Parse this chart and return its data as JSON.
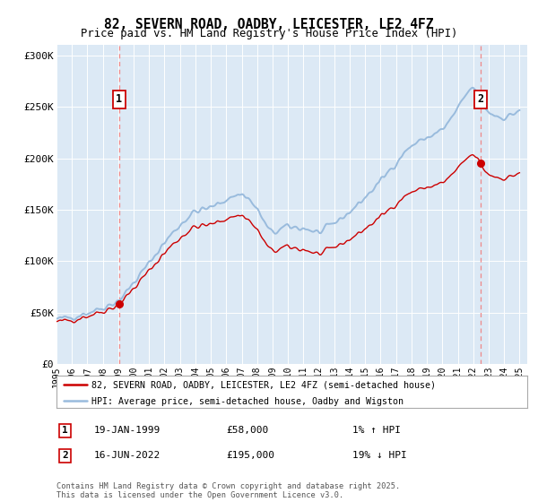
{
  "title": "82, SEVERN ROAD, OADBY, LEICESTER, LE2 4FZ",
  "subtitle": "Price paid vs. HM Land Registry's House Price Index (HPI)",
  "ylim": [
    0,
    310000
  ],
  "yticks": [
    0,
    50000,
    100000,
    150000,
    200000,
    250000,
    300000
  ],
  "ytick_labels": [
    "£0",
    "£50K",
    "£100K",
    "£150K",
    "£200K",
    "£250K",
    "£300K"
  ],
  "xlim_start": 1995.0,
  "xlim_end": 2025.5,
  "sale1_date": 1999.05,
  "sale1_price": 58000,
  "sale2_date": 2022.46,
  "sale2_price": 195000,
  "line_color_property": "#cc0000",
  "line_color_hpi": "#99bbdd",
  "marker_color": "#cc0000",
  "vline_color": "#ee8888",
  "background_color": "#dce9f5",
  "legend_line1": "82, SEVERN ROAD, OADBY, LEICESTER, LE2 4FZ (semi-detached house)",
  "legend_line2": "HPI: Average price, semi-detached house, Oadby and Wigston",
  "annotation1_date": "19-JAN-1999",
  "annotation1_price": "£58,000",
  "annotation1_hpi": "1% ↑ HPI",
  "annotation2_date": "16-JUN-2022",
  "annotation2_price": "£195,000",
  "annotation2_hpi": "19% ↓ HPI",
  "footnote": "Contains HM Land Registry data © Crown copyright and database right 2025.\nThis data is licensed under the Open Government Licence v3.0."
}
